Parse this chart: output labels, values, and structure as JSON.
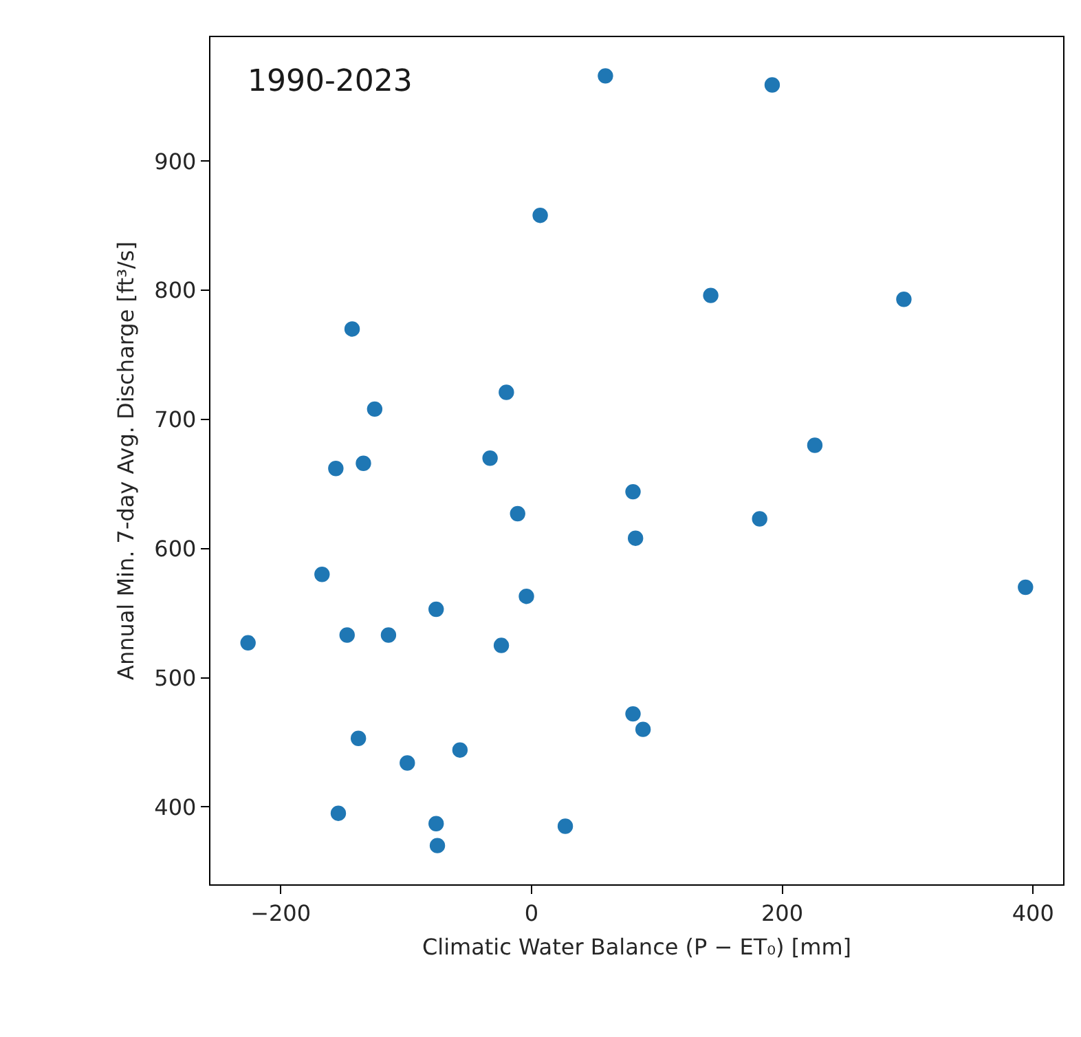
{
  "chart_data": {
    "type": "scatter",
    "xlabel": "Climatic Water Balance (P − ET₀) [mm]",
    "ylabel": "Annual Min. 7-day Avg. Discharge [ft³/s]",
    "annotations": [
      "1990-2023"
    ],
    "marker": "circle",
    "xlim": [
      -256,
      424
    ],
    "ylim": [
      340,
      996
    ],
    "xticks": [
      {
        "value": -200,
        "label": "−200"
      },
      0,
      200,
      400
    ],
    "yticks": [
      400,
      500,
      600,
      700,
      800,
      900
    ],
    "series": [
      {
        "color": "#1f77b4",
        "x": [
          59,
          7,
          -143,
          -20,
          -125,
          -33,
          -156,
          -134,
          192,
          143,
          297,
          226,
          81,
          83,
          -11,
          -167,
          -4,
          -76,
          -226,
          -147,
          -114,
          -24,
          81,
          89,
          -138,
          -57,
          -99,
          -154,
          -76,
          -75,
          27,
          182,
          394
        ],
        "values": [
          966,
          858,
          770,
          721,
          708,
          670,
          662,
          666,
          959,
          796,
          793,
          680,
          644,
          608,
          627,
          580,
          563,
          553,
          527,
          533,
          533,
          525,
          472,
          460,
          453,
          444,
          434,
          395,
          387,
          370,
          385,
          623,
          570
        ]
      }
    ]
  }
}
